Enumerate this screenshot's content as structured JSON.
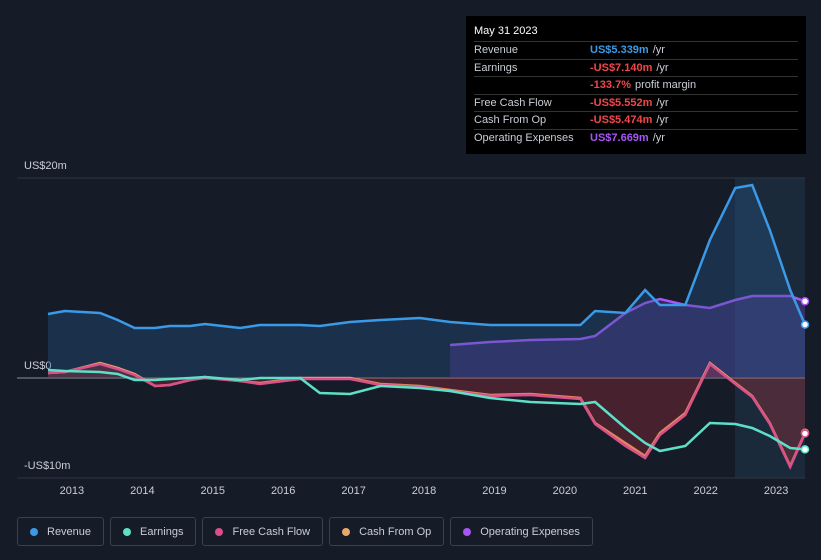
{
  "tooltip": {
    "date": "May 31 2023",
    "rows": [
      {
        "label": "Revenue",
        "value": "US$5.339m",
        "unit": "/yr",
        "color": "#3b9ae8"
      },
      {
        "label": "Earnings",
        "value": "-US$7.140m",
        "unit": "/yr",
        "color": "#f0474b"
      },
      {
        "value": "-133.7%",
        "unit": "profit margin",
        "color": "#f0474b"
      },
      {
        "label": "Free Cash Flow",
        "value": "-US$5.552m",
        "unit": "/yr",
        "color": "#f0474b"
      },
      {
        "label": "Cash From Op",
        "value": "-US$5.474m",
        "unit": "/yr",
        "color": "#f0474b"
      },
      {
        "label": "Operating Expenses",
        "value": "US$7.669m",
        "unit": "/yr",
        "color": "#a855f7"
      }
    ]
  },
  "chart_data": {
    "type": "line",
    "x": [
      2012.66,
      2012.9,
      2013.4,
      2013.65,
      2013.89,
      2014.18,
      2014.39,
      2014.68,
      2014.89,
      2015.39,
      2015.67,
      2016.24,
      2016.52,
      2016.95,
      2017.38,
      2017.94,
      2018.37,
      2018.94,
      2019.51,
      2020.22,
      2020.43,
      2020.86,
      2021.14,
      2021.35,
      2021.71,
      2022.06,
      2022.42,
      2022.66,
      2022.91,
      2023.2,
      2023.41
    ],
    "xlim": [
      2012.22,
      2023.41
    ],
    "xticks": [
      2013,
      2014,
      2015,
      2016,
      2017,
      2018,
      2019,
      2020,
      2021,
      2022,
      2023
    ],
    "ylim": [
      -10,
      20
    ],
    "yticks": [
      {
        "value": 20,
        "label": "US$20m"
      },
      {
        "value": 0,
        "label": "US$0"
      },
      {
        "value": -10,
        "label": "-US$10m"
      }
    ],
    "series": [
      {
        "name": "Revenue",
        "color": "#3b9ae8",
        "values": [
          6.4,
          6.7,
          6.5,
          5.8,
          5.0,
          5.0,
          5.2,
          5.2,
          5.4,
          5.0,
          5.3,
          5.3,
          5.2,
          5.6,
          5.8,
          6.0,
          5.6,
          5.3,
          5.3,
          5.3,
          6.7,
          6.5,
          8.8,
          7.3,
          7.3,
          13.8,
          19.0,
          19.3,
          14.8,
          8.8,
          5.339
        ]
      },
      {
        "name": "Earnings",
        "color": "#5ee0c8",
        "values": [
          0.8,
          0.7,
          0.6,
          0.4,
          -0.2,
          -0.2,
          -0.1,
          0,
          0.1,
          -0.2,
          0,
          0,
          -1.5,
          -1.6,
          -0.8,
          -1.0,
          -1.3,
          -2.0,
          -2.4,
          -2.6,
          -2.4,
          -5.0,
          -6.5,
          -7.3,
          -6.8,
          -4.5,
          -4.6,
          -5.0,
          -5.8,
          -7.0,
          -7.14
        ]
      },
      {
        "name": "Free Cash Flow",
        "color": "#d94f8a",
        "values": [
          0.5,
          0.6,
          1.4,
          0.9,
          0.3,
          -0.8,
          -0.7,
          -0.2,
          0,
          -0.3,
          -0.6,
          -0.1,
          -0.1,
          -0.1,
          -0.7,
          -0.9,
          -1.3,
          -1.8,
          -1.7,
          -2.1,
          -4.6,
          -6.8,
          -8.0,
          -5.7,
          -3.7,
          1.4,
          -0.6,
          -1.9,
          -4.6,
          -8.9,
          -5.552
        ]
      },
      {
        "name": "Cash From Op",
        "color": "#e8a86a",
        "values": [
          0.5,
          0.6,
          1.5,
          1.0,
          0.4,
          -0.8,
          -0.7,
          -0.2,
          0.1,
          -0.3,
          -0.5,
          0,
          0,
          0,
          -0.6,
          -0.8,
          -1.2,
          -1.7,
          -1.6,
          -2.0,
          -4.5,
          -6.5,
          -7.8,
          -5.5,
          -3.5,
          1.5,
          -0.5,
          -1.8,
          -4.5,
          -8.8,
          -5.474
        ]
      },
      {
        "name": "Operating Expenses",
        "color": "#a855f7",
        "values": [
          null,
          null,
          null,
          null,
          null,
          null,
          null,
          null,
          null,
          null,
          null,
          null,
          null,
          null,
          null,
          null,
          3.3,
          3.6,
          3.8,
          3.9,
          4.2,
          6.5,
          7.5,
          7.9,
          7.3,
          7.0,
          7.8,
          8.2,
          8.2,
          8.2,
          7.669
        ]
      }
    ]
  }
}
